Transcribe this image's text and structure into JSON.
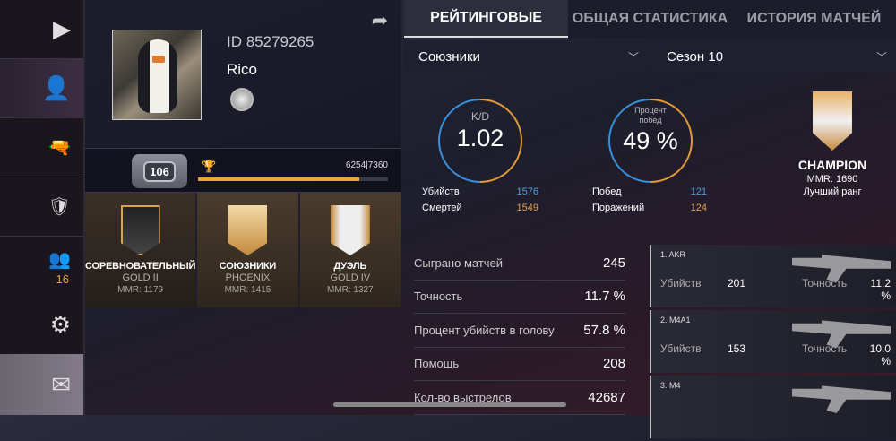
{
  "sidebar": {
    "items": [
      {
        "icon": "play-icon"
      },
      {
        "icon": "profile-icon"
      },
      {
        "icon": "pistol-icon"
      },
      {
        "icon": "clan-shield-icon"
      },
      {
        "icon": "friends-icon",
        "badge": "16"
      },
      {
        "icon": "gear-icon"
      },
      {
        "icon": "mail-icon"
      }
    ]
  },
  "profile": {
    "id": "ID 85279265",
    "name": "Rico",
    "level": "106",
    "xp": "6254|7360",
    "xp_progress": 0.85
  },
  "ranks": [
    {
      "mode": "СОРЕВНОВАТЕЛЬНЫЙ",
      "tier": "GOLD II",
      "mmr": "MMR: 1179"
    },
    {
      "mode": "СОЮЗНИКИ",
      "tier": "PHOENIX",
      "mmr": "MMR: 1415"
    },
    {
      "mode": "ДУЭЛЬ",
      "tier": "GOLD IV",
      "mmr": "MMR: 1327"
    }
  ],
  "tabs": [
    "РЕЙТИНГОВЫЕ",
    "ОБЩАЯ СТАТИСТИКА",
    "ИСТОРИЯ МАТЧЕЙ"
  ],
  "filters": {
    "mode": "Союзники",
    "season": "Сезон 10"
  },
  "summary": {
    "kd_label": "K/D",
    "kd": "1.02",
    "kills_label": "Убийств",
    "kills": "1576",
    "deaths_label": "Смертей",
    "deaths": "1549",
    "win_label": "Процент побед",
    "win": "49 %",
    "wins_label": "Побед",
    "wins": "121",
    "losses_label": "Поражений",
    "losses": "124",
    "best_rank": "CHAMPION",
    "best_mmr": "MMR: 1690",
    "best_label": "Лучший ранг"
  },
  "stats": [
    {
      "label": "Сыграно матчей",
      "value": "245"
    },
    {
      "label": "Точность",
      "value": "11.7 %"
    },
    {
      "label": "Процент убийств в голову",
      "value": "57.8 %"
    },
    {
      "label": "Помощь",
      "value": "208"
    },
    {
      "label": "Кол-во выстрелов",
      "value": "42687"
    }
  ],
  "weapons": [
    {
      "name": "1. AKR",
      "kills_label": "Убийств",
      "kills": "201",
      "acc_label": "Точность",
      "acc": "11.2 %"
    },
    {
      "name": "2. M4A1",
      "kills_label": "Убийств",
      "kills": "153",
      "acc_label": "Точность",
      "acc": "10.0 %"
    },
    {
      "name": "3. M4"
    }
  ],
  "colors": {
    "accent": "#e9a43c",
    "blue": "#4fa0e0",
    "orange": "#e0a050"
  }
}
